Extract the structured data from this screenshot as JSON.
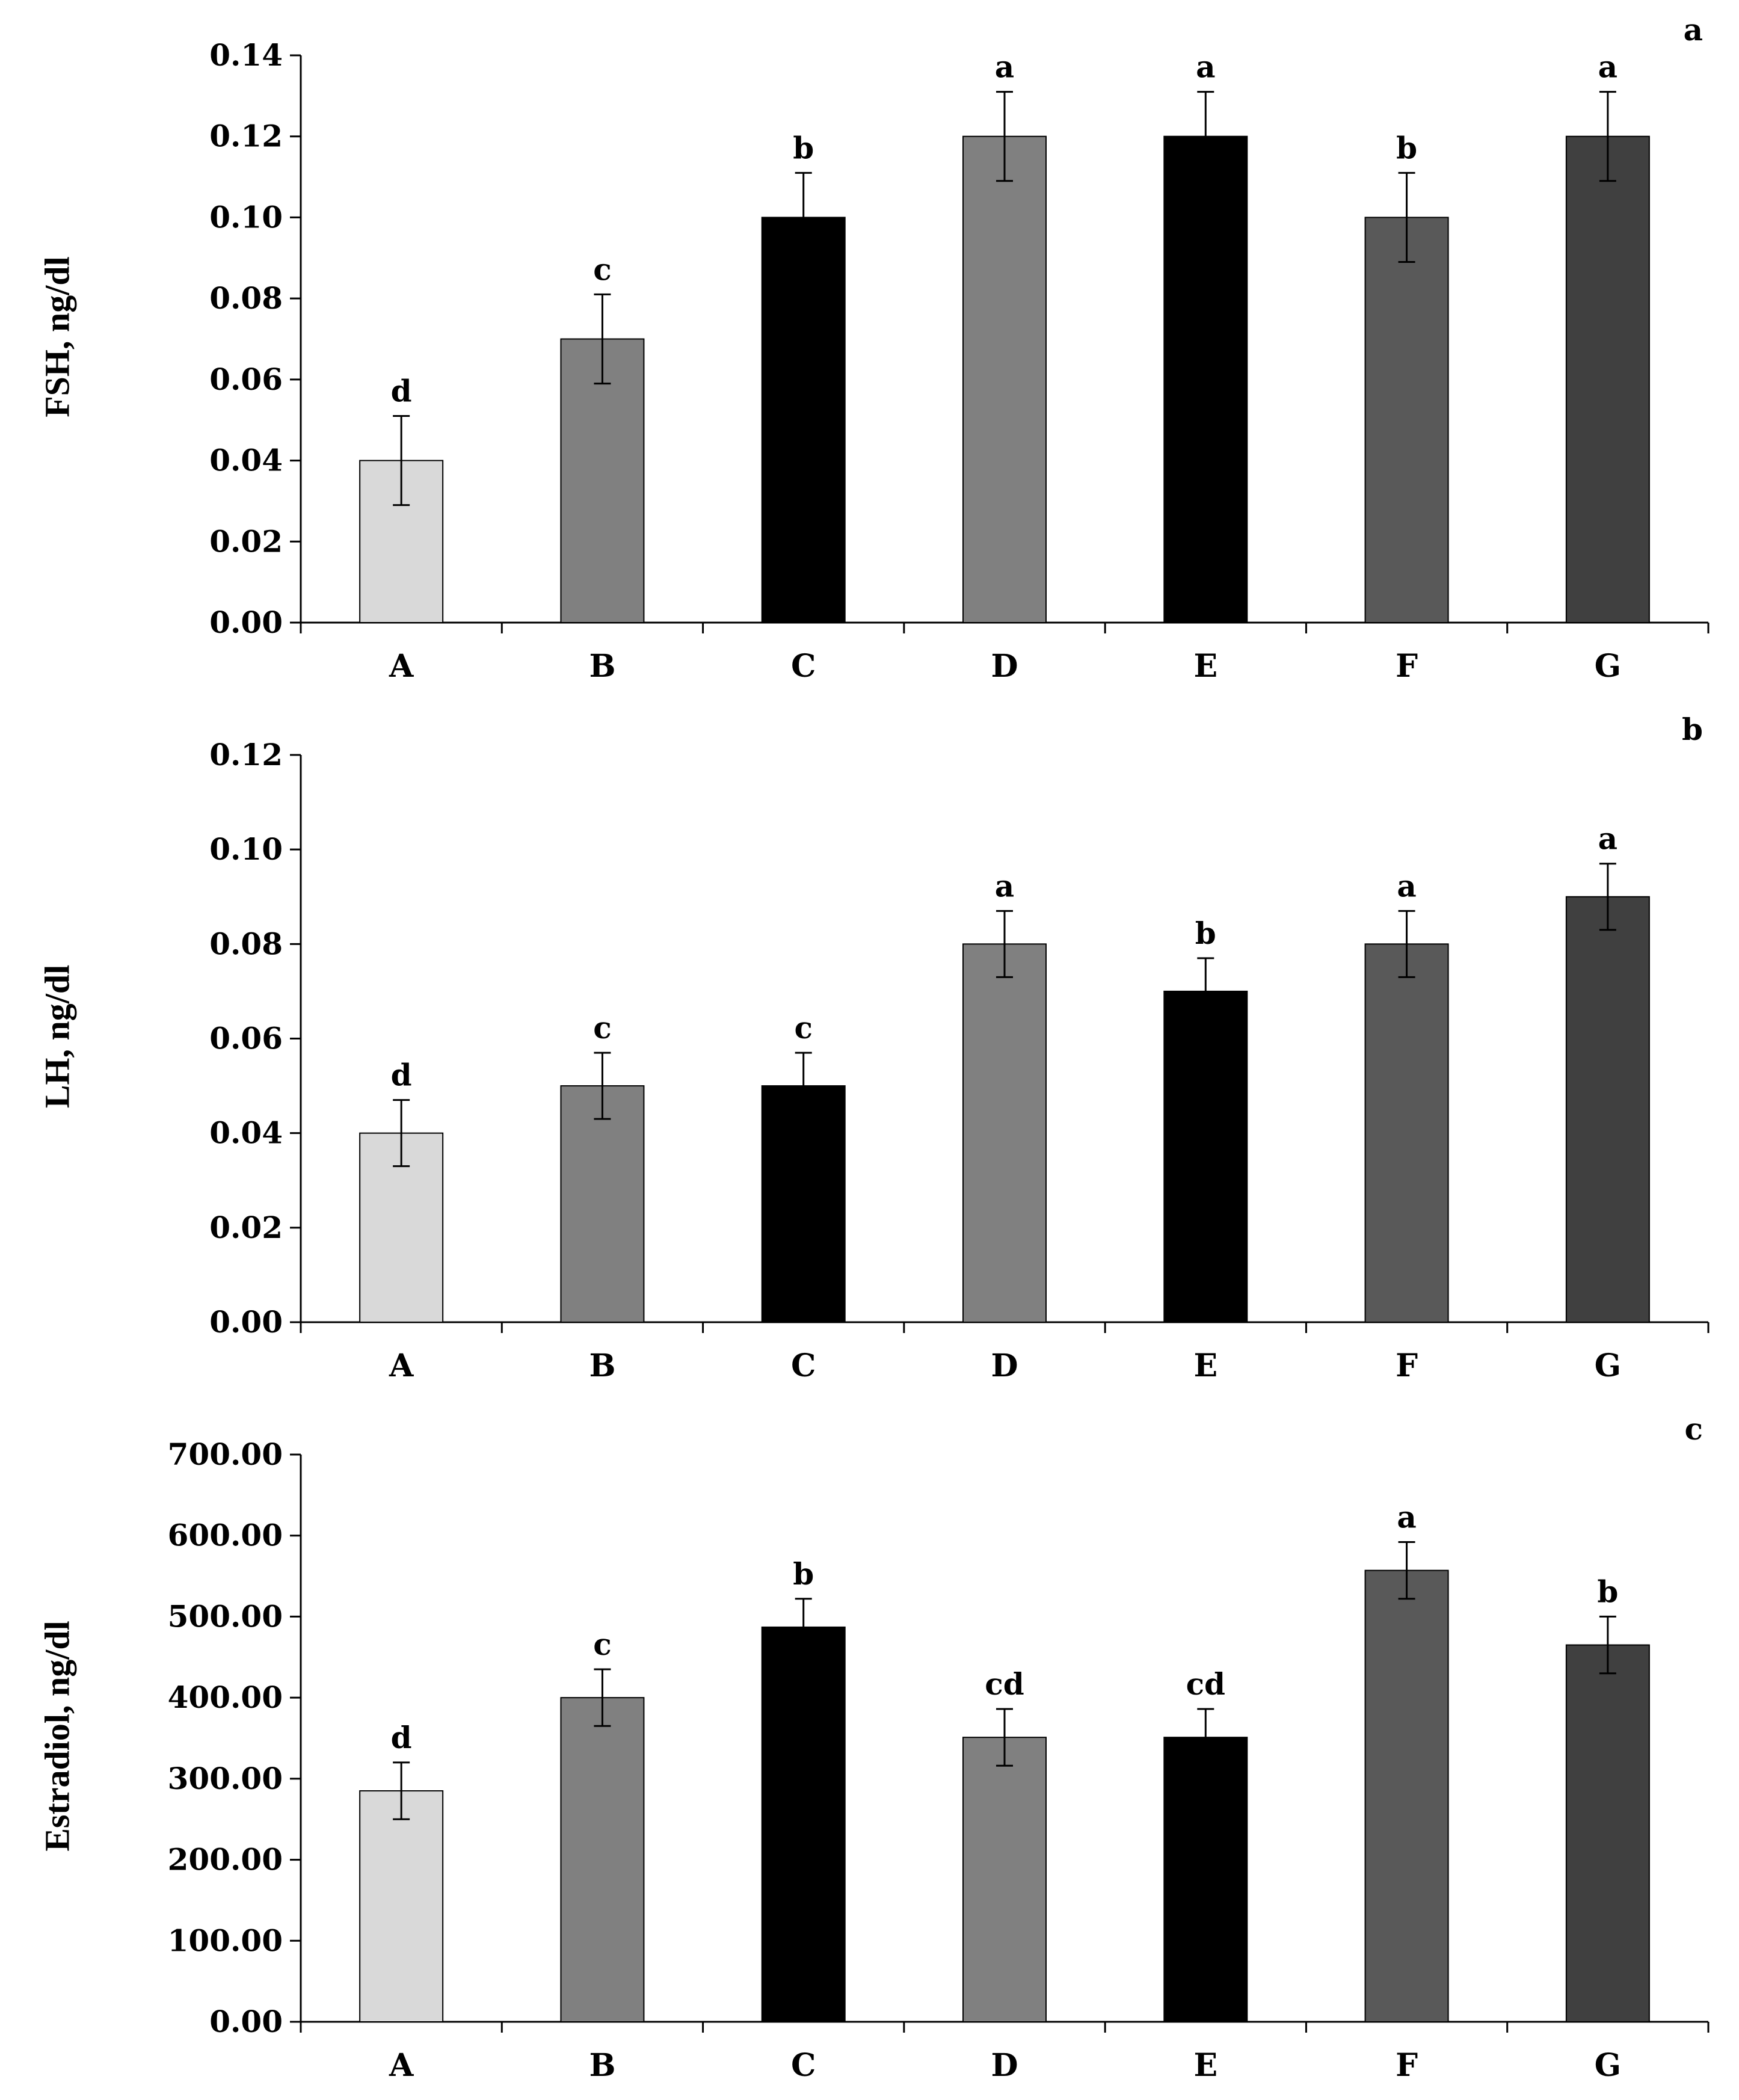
{
  "chart_data": [
    {
      "type": "bar",
      "panel_label": "a",
      "ylabel": "FSH, ng/dl",
      "categories": [
        "A",
        "B",
        "C",
        "D",
        "E",
        "F",
        "G"
      ],
      "values": [
        0.04,
        0.07,
        0.1,
        0.12,
        0.12,
        0.1,
        0.12
      ],
      "errors": [
        0.011,
        0.011,
        0.011,
        0.011,
        0.011,
        0.011,
        0.011
      ],
      "significance": [
        "d",
        "c",
        "b",
        "a",
        "a",
        "b",
        "a"
      ],
      "ylim": [
        0,
        0.14
      ],
      "yticks": [
        "0.00",
        "0.02",
        "0.04",
        "0.06",
        "0.08",
        "0.10",
        "0.12",
        "0.14"
      ],
      "colors": [
        "#d9d9d9",
        "#808080",
        "#000000",
        "#808080",
        "#000000",
        "#595959",
        "#404040"
      ],
      "grid": false
    },
    {
      "type": "bar",
      "panel_label": "b",
      "ylabel": "LH, ng/dl",
      "categories": [
        "A",
        "B",
        "C",
        "D",
        "E",
        "F",
        "G"
      ],
      "values": [
        0.04,
        0.05,
        0.05,
        0.08,
        0.07,
        0.08,
        0.09
      ],
      "errors": [
        0.007,
        0.007,
        0.007,
        0.007,
        0.007,
        0.007,
        0.007
      ],
      "significance": [
        "d",
        "c",
        "c",
        "a",
        "b",
        "a",
        "a"
      ],
      "ylim": [
        0,
        0.12
      ],
      "yticks": [
        "0.00",
        "0.02",
        "0.04",
        "0.06",
        "0.08",
        "0.10",
        "0.12"
      ],
      "colors": [
        "#d9d9d9",
        "#808080",
        "#000000",
        "#808080",
        "#000000",
        "#595959",
        "#404040"
      ],
      "grid": false
    },
    {
      "type": "bar",
      "panel_label": "c",
      "ylabel": "Estradiol, ng/dl",
      "categories": [
        "A",
        "B",
        "C",
        "D",
        "E",
        "F",
        "G"
      ],
      "values": [
        285,
        400,
        487,
        351,
        351,
        557,
        465
      ],
      "errors": [
        35,
        35,
        35,
        35,
        35,
        35,
        35
      ],
      "significance": [
        "d",
        "c",
        "b",
        "cd",
        "cd",
        "a",
        "b"
      ],
      "ylim": [
        0,
        700
      ],
      "yticks": [
        "0.00",
        "100.00",
        "200.00",
        "300.00",
        "400.00",
        "500.00",
        "600.00",
        "700.00"
      ],
      "colors": [
        "#d9d9d9",
        "#808080",
        "#000000",
        "#808080",
        "#000000",
        "#595959",
        "#404040"
      ],
      "grid": false
    }
  ]
}
